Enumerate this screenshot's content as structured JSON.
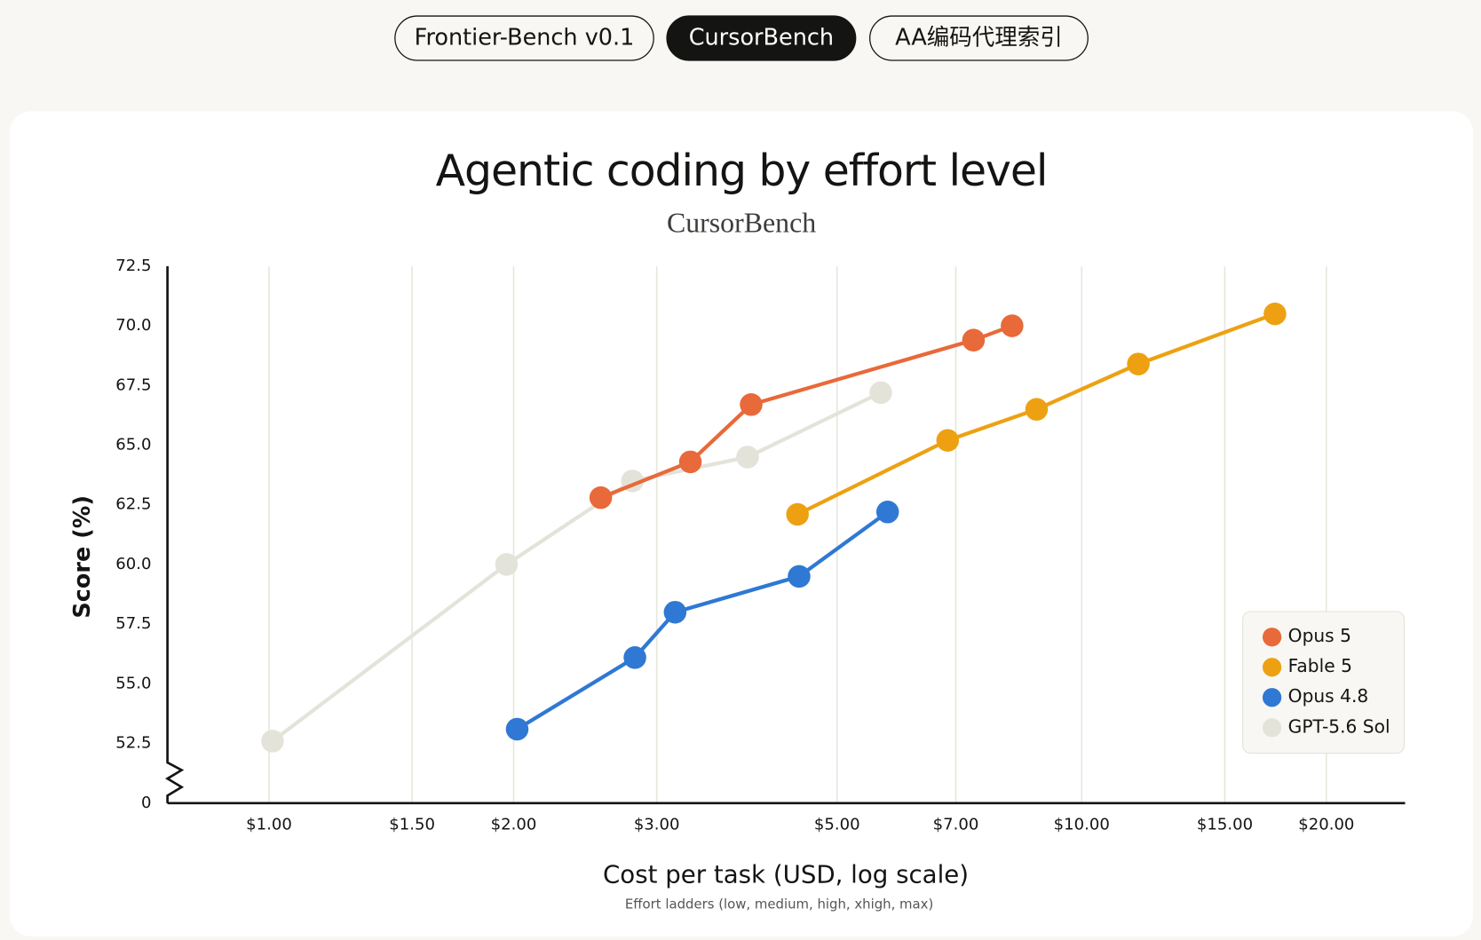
{
  "tabs": {
    "items": [
      "Frontier-Bench v0.1",
      "CursorBench",
      "AA编码代理索引"
    ],
    "active": 1
  },
  "chart_data": {
    "type": "line",
    "title": "Agentic coding by effort level",
    "subtitle": "CursorBench",
    "x_label": "Cost per task (USD, log scale)",
    "y_label": "Score (%)",
    "note": "Effort ladders (low, medium, high, xhigh, max)",
    "x_log": true,
    "y_axis_break": true,
    "grid": "x",
    "legend": "lower right",
    "xlim": [
      0.75,
      25
    ],
    "xticks": [
      {
        "value": 1,
        "label": "$1.00"
      },
      {
        "value": 1.5,
        "label": "$1.50"
      },
      {
        "value": 2,
        "label": "$2.00"
      },
      {
        "value": 3,
        "label": "$3.00"
      },
      {
        "value": 5,
        "label": "$5.00"
      },
      {
        "value": 7,
        "label": "$7.00"
      },
      {
        "value": 10,
        "label": "$10.00"
      },
      {
        "value": 15,
        "label": "$15.00"
      },
      {
        "value": 20,
        "label": "$20.00"
      }
    ],
    "ylim": [
      50,
      72.5
    ],
    "yticks": [
      0,
      52.5,
      {
        "value": 55,
        "label": "55.0"
      },
      57.5,
      {
        "value": 60,
        "label": "60.0"
      },
      62.5,
      {
        "value": 65,
        "label": "65.0"
      },
      67.5,
      {
        "value": 70,
        "label": "70.0"
      },
      72.5
    ],
    "series": [
      {
        "name": "Opus 5",
        "color": "#e8693a",
        "x": [
          2.56,
          3.3,
          3.92,
          7.36,
          8.21
        ],
        "values": [
          62.8,
          64.3,
          66.7,
          69.4,
          70.0
        ]
      },
      {
        "name": "Fable 5",
        "color": "#eda112",
        "x": [
          4.47,
          6.84,
          8.8,
          11.74,
          17.29
        ],
        "values": [
          62.1,
          65.2,
          66.5,
          68.4,
          70.5
        ]
      },
      {
        "name": "Opus 4.8",
        "color": "#2f78d4",
        "x": [
          2.02,
          2.82,
          3.16,
          4.49,
          5.77
        ],
        "values": [
          53.1,
          56.1,
          58.0,
          59.5,
          62.2
        ]
      },
      {
        "name": "GPT-5.6 Sol",
        "color": "#e4e3da",
        "x": [
          1.01,
          1.96,
          2.8,
          3.88,
          5.66
        ],
        "values": [
          52.6,
          60.0,
          63.5,
          64.5,
          67.2
        ]
      }
    ]
  }
}
